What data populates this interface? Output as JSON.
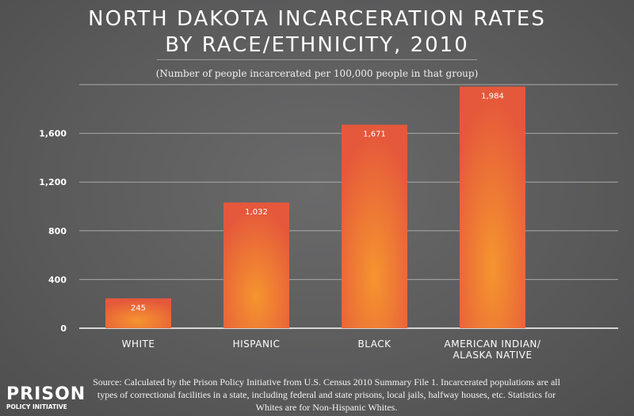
{
  "chart_data": {
    "type": "bar",
    "title": "NORTH DAKOTA INCARCERATION RATES BY RACE/ETHNICITY, 2010",
    "title_lines": [
      "NORTH DAKOTA INCARCERATION RATES",
      "BY RACE/ETHNICITY, 2010"
    ],
    "subtitle": "(Number of people incarcerated per 100,000 people in that group)",
    "categories": [
      "WHITE",
      "HISPANIC",
      "BLACK",
      "AMERICAN INDIAN/ ALASKA NATIVE"
    ],
    "category_lines": [
      [
        "WHITE"
      ],
      [
        "HISPANIC"
      ],
      [
        "BLACK"
      ],
      [
        "AMERICAN INDIAN/",
        "ALASKA NATIVE"
      ]
    ],
    "values": [
      245,
      1032,
      1671,
      1984
    ],
    "data_labels": [
      "245",
      "1,032",
      "1,671",
      "1,984"
    ],
    "ylim": [
      0,
      2000
    ],
    "yticks": [
      0,
      400,
      800,
      1200,
      1600
    ],
    "ytick_labels": [
      "0",
      "400",
      "800",
      "1,200",
      "1,600"
    ],
    "grid": true,
    "bar_color": "#e8603a",
    "bar_highlight": "#f59234"
  },
  "source": "Source: Calculated by the Prison Policy Initiative from U.S. Census 2010 Summary File 1. Incarcerated populations are all types of correctional facilities in a state, including federal and state prisons, local jails, halfway houses, etc. Statistics for Whites are for Non-Hispanic Whites.",
  "logo": {
    "line1": "PRISON",
    "line2": "POLICY INITIATIVE"
  }
}
